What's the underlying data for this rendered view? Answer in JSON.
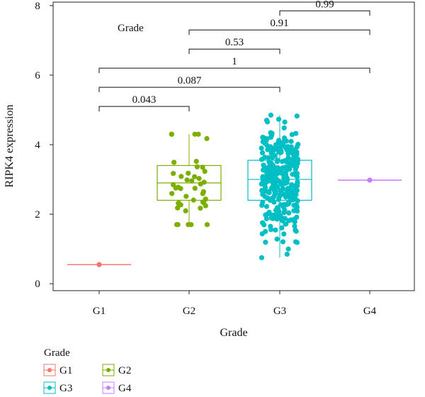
{
  "chart_data": {
    "type": "boxplot",
    "title": "",
    "xlabel": "Grade",
    "ylabel": "RIPK4 expression",
    "ylim": [
      -0.2,
      8.1
    ],
    "yticks": [
      0,
      2,
      4,
      6,
      8
    ],
    "categories": [
      "G1",
      "G2",
      "G3",
      "G4"
    ],
    "inset_label": "Grade",
    "series": [
      {
        "name": "G1",
        "color": "#F8766D",
        "n": 1,
        "values": [
          0.55
        ],
        "box": {
          "min": 0.55,
          "q1": 0.55,
          "median": 0.55,
          "q3": 0.55,
          "max": 0.55
        }
      },
      {
        "name": "G2",
        "color": "#7CAE00",
        "n": 44,
        "box": {
          "min": 1.7,
          "q1": 2.4,
          "median": 2.9,
          "q3": 3.4,
          "max": 4.3
        }
      },
      {
        "name": "G3",
        "color": "#00BFC4",
        "n": 320,
        "box": {
          "min": 0.75,
          "q1": 2.4,
          "median": 3.0,
          "q3": 3.55,
          "max": 4.85
        }
      },
      {
        "name": "G4",
        "color": "#C77CFF",
        "n": 1,
        "values": [
          2.98
        ],
        "box": {
          "min": 2.98,
          "q1": 2.98,
          "median": 2.98,
          "q3": 2.98,
          "max": 2.98
        }
      }
    ],
    "comparisons": [
      {
        "from": "G1",
        "to": "G2",
        "label": "0.043",
        "y": 5.1
      },
      {
        "from": "G1",
        "to": "G3",
        "label": "0.087",
        "y": 5.65
      },
      {
        "from": "G1",
        "to": "G4",
        "label": "1",
        "y": 6.2
      },
      {
        "from": "G2",
        "to": "G3",
        "label": "0.53",
        "y": 6.75
      },
      {
        "from": "G2",
        "to": "G4",
        "label": "0.91",
        "y": 7.3
      },
      {
        "from": "G3",
        "to": "G4",
        "label": "0.99",
        "y": 7.85
      }
    ],
    "legend": {
      "title": "Grade",
      "position": "bottom-left",
      "items": [
        "G1",
        "G2",
        "G3",
        "G4"
      ]
    }
  }
}
